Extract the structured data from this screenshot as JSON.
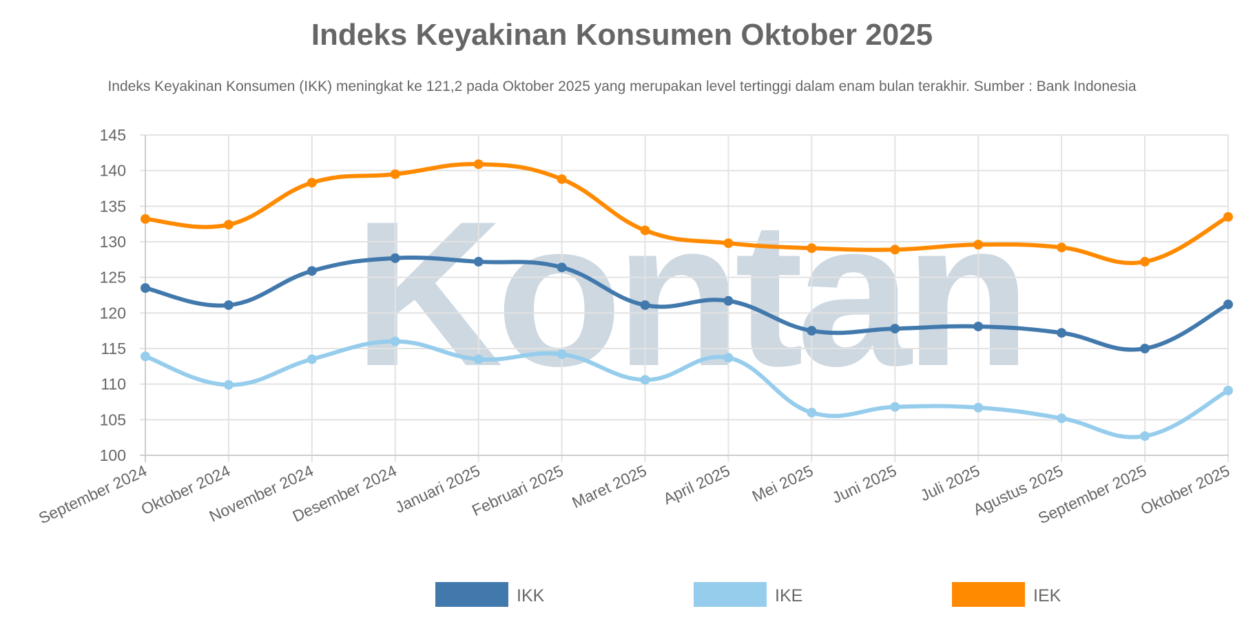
{
  "chart_data": {
    "type": "line",
    "title": "Indeks Keyakinan Konsumen Oktober 2025",
    "subtitle": "Indeks Keyakinan Konsumen (IKK) meningkat ke 121,2 pada Oktober 2025 yang merupakan level tertinggi dalam enam bulan terakhir. Sumber : Bank Indonesia",
    "categories": [
      "September 2024",
      "Oktober 2024",
      "November 2024",
      "Desember 2024",
      "Januari 2025",
      "Februari 2025",
      "Maret 2025",
      "April 2025",
      "Mei 2025",
      "Juni 2025",
      "Juli 2025",
      "Agustus 2025",
      "September 2025",
      "Oktober 2025"
    ],
    "series": [
      {
        "name": "IKK",
        "color": "#4279ad",
        "values": [
          123.5,
          121.1,
          125.9,
          127.7,
          127.2,
          126.4,
          121.1,
          121.7,
          117.5,
          117.8,
          118.1,
          117.2,
          115.0,
          121.2
        ]
      },
      {
        "name": "IKE",
        "color": "#96cdec",
        "values": [
          113.9,
          109.9,
          113.5,
          116.0,
          113.5,
          114.2,
          110.6,
          113.7,
          106.0,
          106.8,
          106.7,
          105.2,
          102.7,
          109.1
        ]
      },
      {
        "name": "IEK",
        "color": "#ff8a00",
        "values": [
          133.2,
          132.4,
          138.3,
          139.5,
          140.9,
          138.8,
          131.6,
          129.8,
          129.1,
          128.9,
          129.6,
          129.2,
          127.2,
          133.5
        ]
      }
    ],
    "ylim": [
      100,
      145
    ],
    "yticks": [
      100,
      105,
      110,
      115,
      120,
      125,
      130,
      135,
      140,
      145
    ],
    "xlabel": "",
    "ylabel": "",
    "grid": true,
    "legend_position": "bottom",
    "watermark": "Kontan"
  }
}
